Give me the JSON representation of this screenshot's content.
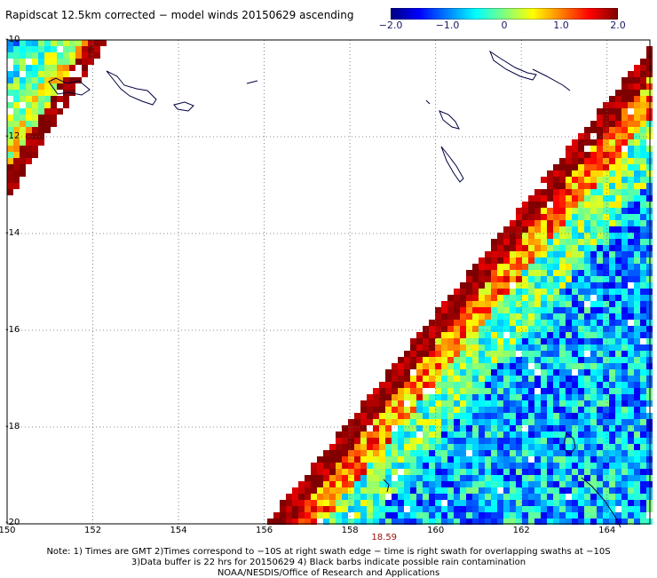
{
  "title": "Rapidscat 12.5km corrected − model winds 20150629 ascending",
  "colorbar": {
    "tick_labels": [
      "−2.0",
      "−1.0",
      "0",
      "1.0",
      "2.0"
    ],
    "tick_values": [
      -2.0,
      -1.0,
      0,
      1.0,
      2.0
    ],
    "range": [
      -2.0,
      2.0
    ],
    "colors": [
      "#00007f",
      "#0000ff",
      "#0080ff",
      "#00ffff",
      "#80ff80",
      "#ffff00",
      "#ff8000",
      "#ff0000",
      "#7f0000"
    ]
  },
  "map": {
    "lon_range": [
      150,
      165
    ],
    "lat_range": [
      -20,
      -10
    ],
    "lat_labels": [
      "-10",
      "-12",
      "-14",
      "-16",
      "-18",
      "-20"
    ],
    "lat_values": [
      -10,
      -12,
      -14,
      -16,
      -18,
      -20
    ],
    "lon_labels": [
      "150",
      "152",
      "154",
      "156",
      "158",
      "160",
      "162",
      "164"
    ],
    "lon_values": [
      150,
      152,
      154,
      156,
      158,
      160,
      162,
      164
    ],
    "grid": true,
    "time_label": "18.59",
    "time_label_lon": 158.8
  },
  "notes": [
    "Note: 1) Times are GMT 2)Times correspond to −10S at right swath edge − time is right swath for overlapping swaths at −10S",
    "3)Data buffer is 22 hrs for 20150629 4) Black barbs indicate possible rain contamination",
    "NOAA/NESDIS/Office of Research and Applications"
  ]
}
